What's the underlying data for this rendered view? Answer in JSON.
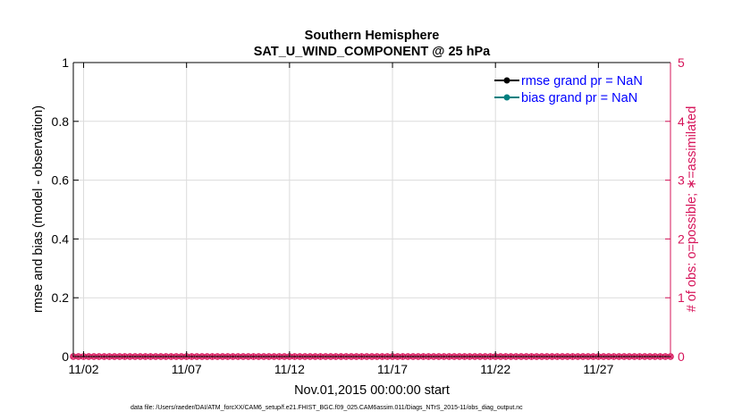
{
  "chart_data": {
    "type": "line",
    "title": "Southern Hemisphere",
    "subtitle": "SAT_U_WIND_COMPONENT @ 25 hPa",
    "xlabel": "Nov.01,2015 00:00:00 start",
    "ylabel_left": "rmse and bias (model - observation)",
    "ylabel_right": "# of obs: o=possible; ∗=assimilated",
    "footer": "data file: /Users/raeder/DAI/ATM_forcXX/CAM6_setup/f.e21.FHIST_BGC.f09_025.CAM6assim.011/Diags_NTrS_2015-11/obs_diag_output.nc",
    "x_ticks": [
      "11/02",
      "11/07",
      "11/12",
      "11/17",
      "11/22",
      "11/27"
    ],
    "x_tick_days": [
      2,
      7,
      12,
      17,
      22,
      27
    ],
    "x_range_days": [
      1.5,
      30.5
    ],
    "ylim_left": [
      0,
      1
    ],
    "y_ticks_left": [
      "0",
      "0.2",
      "0.4",
      "0.6",
      "0.8",
      "1"
    ],
    "ylim_right": [
      0,
      5
    ],
    "y_ticks_right": [
      "0",
      "1",
      "2",
      "3",
      "4",
      "5"
    ],
    "grid": true,
    "legend_position": "top-right",
    "series": [
      {
        "name": "rmse grand pr = NaN",
        "color": "#000000",
        "marker": "circle",
        "values": []
      },
      {
        "name": "bias grand pr = NaN",
        "color": "#008080",
        "marker": "circle",
        "values": []
      }
    ],
    "obs_counts": {
      "possible_color": "#d6145a",
      "assimilated_color": "#d6145a",
      "days_start": 1.5,
      "days_end": 30.5,
      "step_days": 0.25,
      "value": 0
    },
    "colors": {
      "axis_left": "#000000",
      "axis_right": "#d6145a",
      "legend_text": "#0000ff",
      "grid": "#dcdcdc"
    }
  }
}
